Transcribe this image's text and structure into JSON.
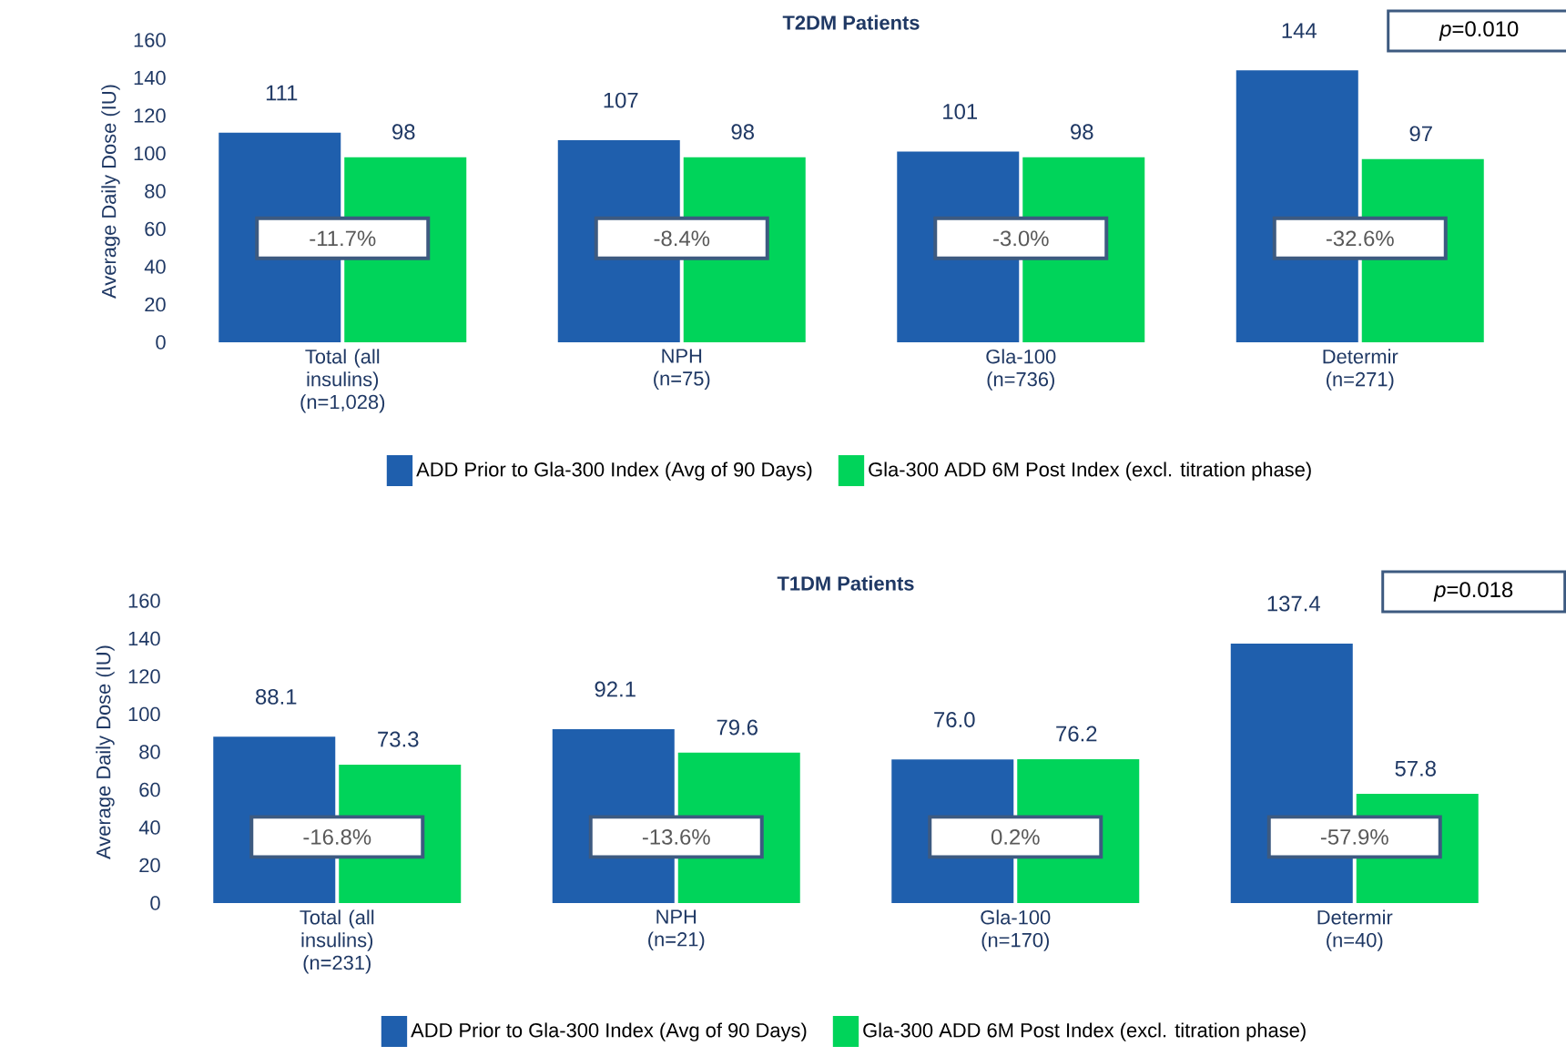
{
  "chart_data": [
    {
      "type": "bar",
      "title": "T2DM Patients",
      "ylabel": "Average Daily Dose (IU)",
      "categories": [
        "Total (all insulins) (n=1,028)",
        "NPH (n=75)",
        "Gla-100 (n=736)",
        "Determir (n=271)"
      ],
      "series": [
        {
          "name": "ADD Prior to Gla-300 Index (Avg of 90 Days)",
          "color": "#1f5fad",
          "values": [
            111,
            107,
            101,
            144
          ]
        },
        {
          "name": "Gla-300 ADD 6M Post  Index (excl. titration phase)",
          "color": "#00d45a",
          "values": [
            98,
            98,
            98,
            97
          ]
        }
      ],
      "ylim": [
        0,
        160
      ],
      "yticks": [
        0,
        20,
        40,
        60,
        80,
        100,
        120,
        140,
        160
      ],
      "data_labels": true,
      "legend": "bottom",
      "annotations": [
        {
          "text": "-11.7%",
          "x": "Total (all insulins) (n=1,028)",
          "y": 55
        },
        {
          "text": "-8.4%",
          "x": "NPH (n=75)",
          "y": 55
        },
        {
          "text": "-3.0%",
          "x": "Gla-100 (n=736)",
          "y": 55
        },
        {
          "text": "-32.6%",
          "x": "Determir (n=271)",
          "y": 55
        },
        "*p*=0.010"
      ]
    },
    {
      "type": "bar",
      "title": "T1DM Patients",
      "ylabel": "Average Daily Dose (IU)",
      "categories": [
        "Total (all insulins) (n=231)",
        "NPH (n=21)",
        "Gla-100 (n=170)",
        "Determir (n=40)"
      ],
      "series": [
        {
          "name": "ADD Prior to Gla-300 Index (Avg of 90 Days)",
          "color": "#1f5fad",
          "values": [
            88.1,
            92.1,
            76.0,
            137.4
          ],
          "value_labels": [
            "88.1",
            "92.1",
            "76.0",
            "137.4"
          ]
        },
        {
          "name": "Gla-300 ADD 6M Post  Index (excl. titration phase)",
          "color": "#00d45a",
          "values": [
            73.3,
            79.6,
            76.2,
            57.8
          ],
          "value_labels": [
            "73.3",
            "79.6",
            "76.2",
            "57.8"
          ]
        }
      ],
      "ylim": [
        0,
        160
      ],
      "yticks": [
        0,
        20,
        40,
        60,
        80,
        100,
        120,
        140,
        160
      ],
      "legend": "bottom",
      "annotations": [
        {
          "text": "-16.8%",
          "x": "Total (all insulins) (n=231)",
          "y": 35
        },
        {
          "text": "-13.6%",
          "x": "NPH (n=21)",
          "y": 35
        },
        {
          "text": "0.2%",
          "x": "Gla-100 (n=170)",
          "y": 35
        },
        {
          "text": "-57.9%",
          "x": "Determir (n=40)",
          "y": 35
        },
        "*p*=0.018"
      ]
    }
  ]
}
